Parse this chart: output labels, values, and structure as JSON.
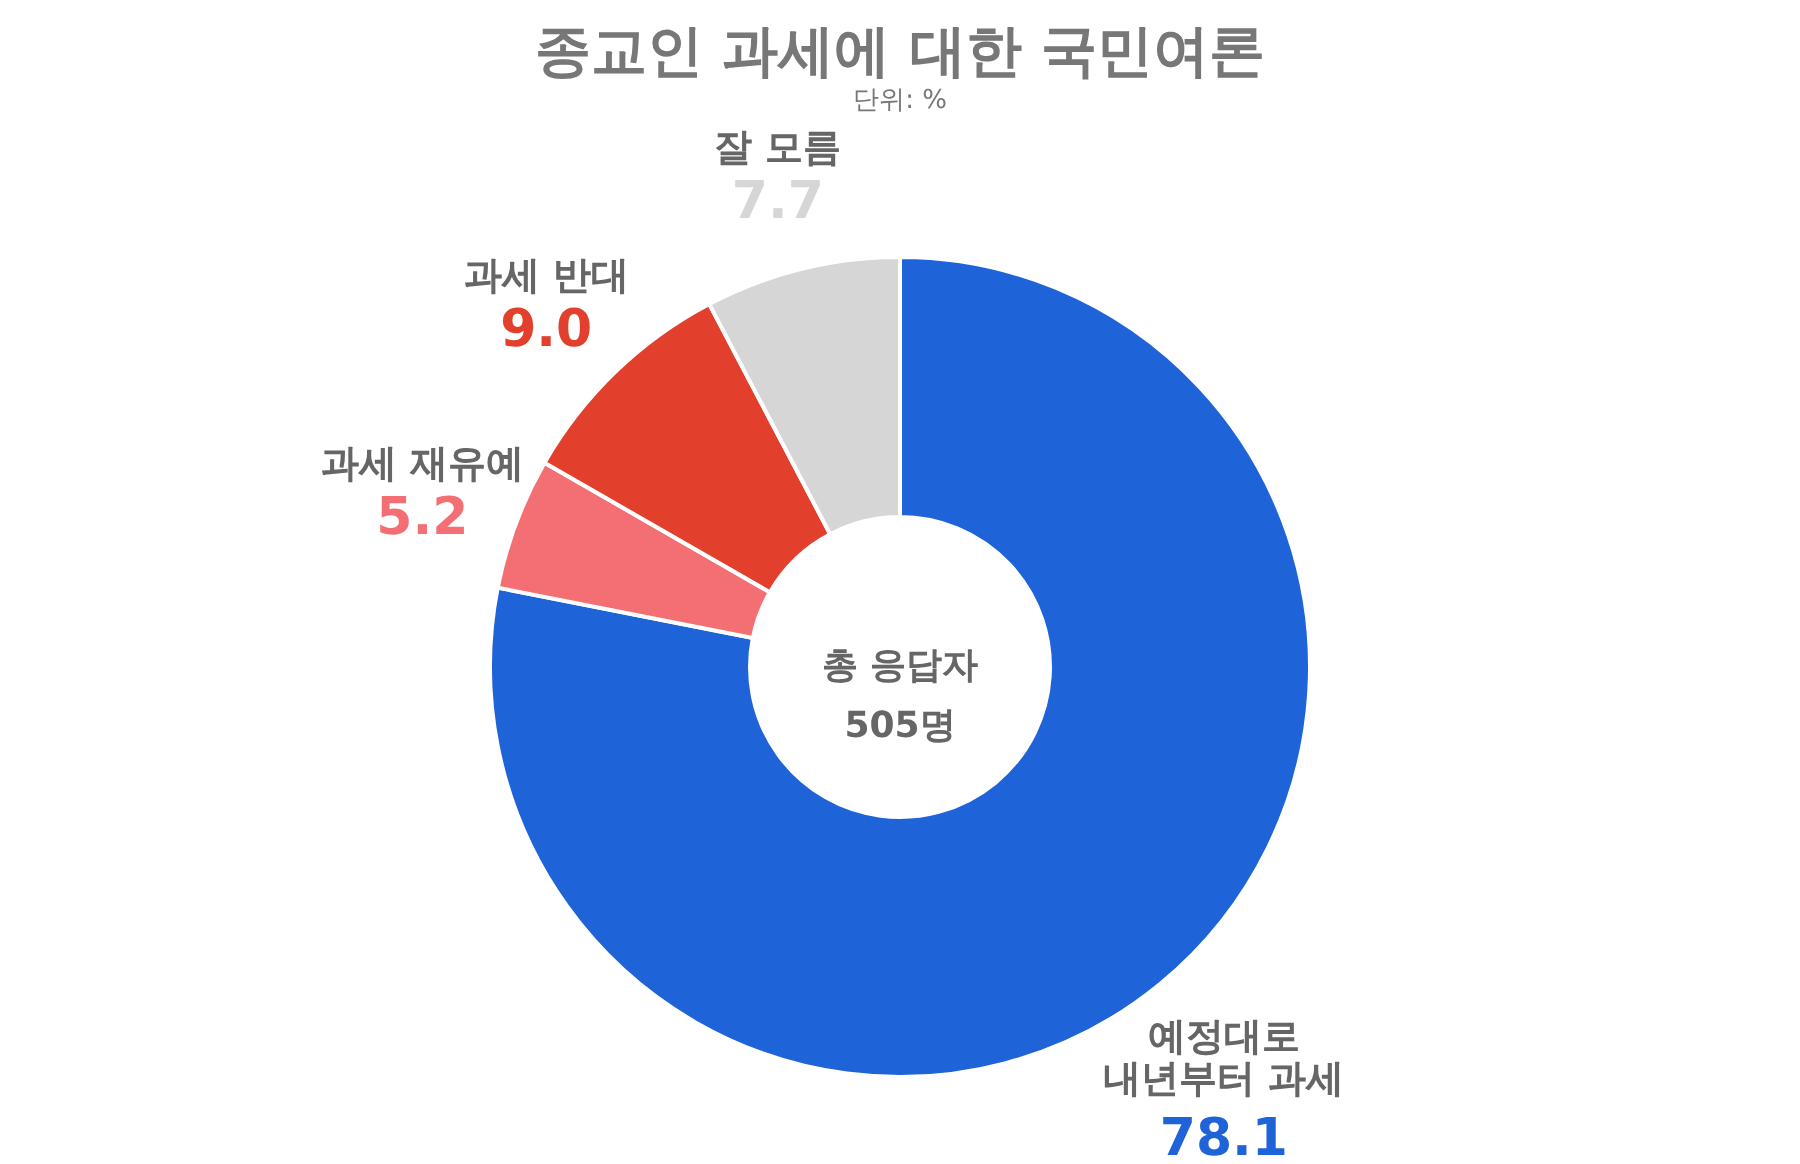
{
  "chart_data": {
    "type": "donut",
    "title": "종교인 과세에 대한 국민여론",
    "subtitle": "단위: %",
    "categories": [
      "예정대로\n내년부터 과세",
      "과세 재유예",
      "과세 반대",
      "잘 모름"
    ],
    "values": [
      78.1,
      5.2,
      9.0,
      7.7
    ],
    "colors": [
      "#1f63d8",
      "#f36f73",
      "#e2402c",
      "#d6d6d6"
    ],
    "value_labels": [
      "78.1",
      "5.2",
      "9.0",
      "7.7"
    ],
    "annotations": [
      "총 응답자\n505명"
    ]
  }
}
